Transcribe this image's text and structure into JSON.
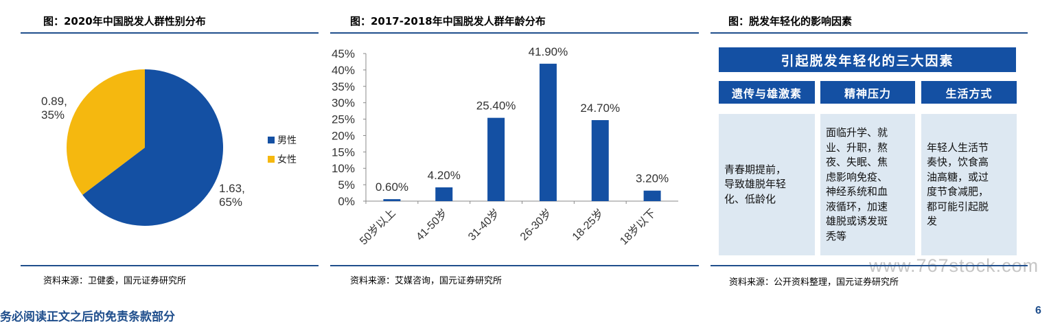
{
  "titles": {
    "left": "图：2020年中国脱发人群性别分布",
    "middle": "图：2017-2018年中国脱发人群年龄分布",
    "right": "图：脱发年轻化的影响因素"
  },
  "sources": {
    "left": "资料来源：卫健委，国元证券研究所",
    "middle": "资料来源：艾媒咨询，国元证券研究所",
    "right": "资料来源：公开资料整理，国元证券研究所"
  },
  "chart_data": [
    {
      "type": "pie",
      "slices": [
        {
          "name": "男性",
          "value": 1.63,
          "percent": 65,
          "label_value": "1.63,",
          "label_percent": "65%",
          "color": "#1450a3"
        },
        {
          "name": "女性",
          "value": 0.89,
          "percent": 35,
          "label_value": "0.89,",
          "label_percent": "35%",
          "color": "#f5b80f"
        }
      ],
      "legend": [
        "男性",
        "女性"
      ],
      "legend_position": "right"
    },
    {
      "type": "bar",
      "categories": [
        "50岁以上",
        "41-50岁",
        "31-40岁",
        "26-30岁",
        "18-25岁",
        "18岁以下"
      ],
      "values": [
        0.6,
        4.2,
        25.4,
        41.9,
        24.7,
        3.2
      ],
      "data_labels": [
        "0.60%",
        "4.20%",
        "25.40%",
        "41.90%",
        "24.70%",
        "3.20%"
      ],
      "y_ticks": [
        "45%",
        "40%",
        "35%",
        "30%",
        "25%",
        "20%",
        "15%",
        "10%",
        "5%",
        "0%"
      ],
      "ylim": [
        0,
        45
      ],
      "color": "#1450a3",
      "grid": false
    }
  ],
  "factors": {
    "header": "引起脱发年轻化的三大因素",
    "columns": [
      {
        "title": "遗传与雄激素",
        "lines": [
          "青春期提前，",
          "导致雄脱年轻",
          "化、低龄化"
        ]
      },
      {
        "title": "精神压力",
        "lines": [
          "面临升学、就",
          "业、升职，熬",
          "夜、失眠、焦",
          "虑影响免疫、",
          "神经系统和血",
          "液循环，加速",
          "雄脱或诱发斑",
          "秃等"
        ]
      },
      {
        "title": "生活方式",
        "lines": [
          "年轻人生活节",
          "奏快，饮食高",
          "油高糖，或过",
          "度节食减肥，",
          "都可能引起脱",
          "发"
        ]
      }
    ]
  },
  "footer": {
    "note": "务必阅读正文之后的免责条款部分",
    "page": "6"
  },
  "watermark": "www.767stock.com"
}
